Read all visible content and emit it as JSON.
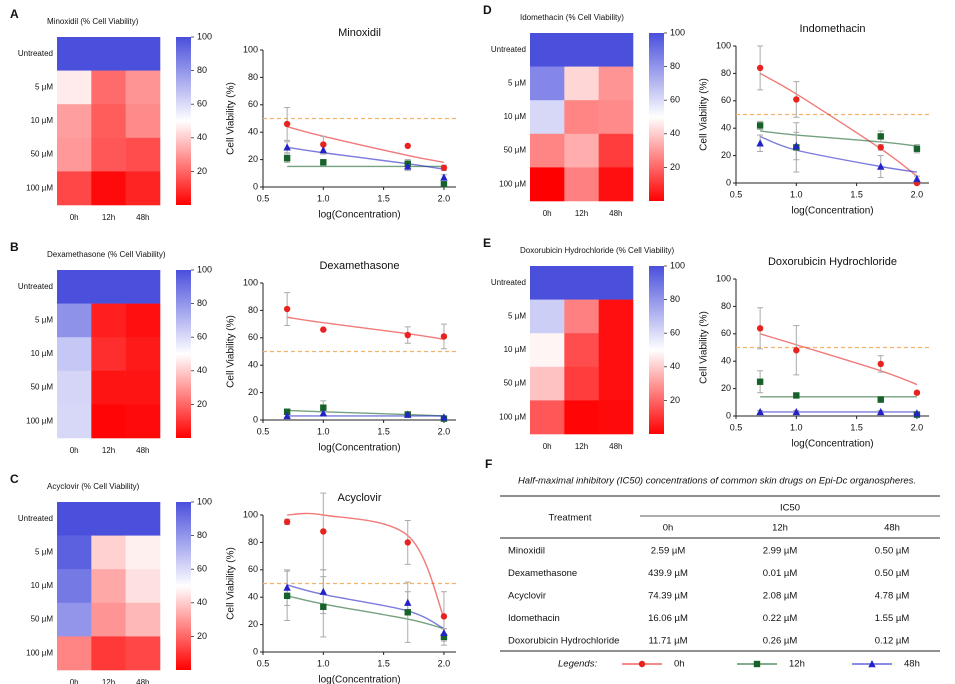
{
  "chart_data": [
    {
      "type": "heatmap",
      "panel": "A",
      "title": "Minoxidil (% Cell Viability)",
      "rows": [
        "Untreated",
        "5 µM",
        "10 µM",
        "50 µM",
        "100 µM"
      ],
      "columns": [
        "0h",
        "12h",
        "48h"
      ],
      "values": [
        [
          100,
          100,
          100
        ],
        [
          46,
          21,
          29
        ],
        [
          31,
          18,
          27
        ],
        [
          30,
          17,
          15
        ],
        [
          14,
          2,
          7
        ]
      ],
      "colorbar": {
        "lim": [
          0,
          100
        ],
        "ticks": [
          20,
          40,
          60,
          80,
          100
        ],
        "colors": [
          "#ff0000",
          "#ffffff",
          "#4a4fdc"
        ]
      }
    },
    {
      "type": "scatter",
      "title": "Minoxidil",
      "xlabel": "log(Concentration)",
      "ylabel": "Cell Viability (%)",
      "x": [
        0.7,
        1.0,
        1.7,
        2.0
      ],
      "series": [
        {
          "values": [
            46,
            31,
            30,
            14
          ],
          "errors": [
            12,
            6,
            0,
            2
          ],
          "fit": [
            44,
            37,
            23,
            18
          ]
        },
        {
          "values": [
            21,
            18,
            17,
            2
          ],
          "errors": [
            3,
            2,
            3,
            1
          ],
          "fit": [
            15,
            15,
            15,
            15
          ]
        },
        {
          "values": [
            29,
            27,
            15,
            7
          ],
          "errors": [
            4,
            3,
            3,
            2
          ],
          "fit": [
            29,
            25,
            17,
            13
          ]
        }
      ],
      "xlim": [
        0.5,
        2.1
      ],
      "ylim": [
        0,
        100
      ],
      "xticks": [
        {
          "value": 0.5,
          "label": "0.5"
        },
        {
          "value": 1,
          "label": "1.0"
        },
        {
          "value": 1.5,
          "label": "1.5"
        },
        {
          "value": 2,
          "label": "2.0"
        }
      ],
      "yticks": [
        0,
        20,
        40,
        60,
        80,
        100
      ],
      "reference_line": 50,
      "reference_color": "#f5b26b"
    },
    {
      "type": "heatmap",
      "panel": "B",
      "title": "Dexamethasone (% Cell Viability)",
      "rows": [
        "Untreated",
        "5 µM",
        "10 µM",
        "50 µM",
        "100 µM"
      ],
      "columns": [
        "0h",
        "12h",
        "48h"
      ],
      "values": [
        [
          100,
          100,
          100
        ],
        [
          81,
          6,
          3
        ],
        [
          66,
          9,
          5
        ],
        [
          62,
          4,
          4
        ],
        [
          61,
          1,
          2
        ]
      ],
      "colorbar": {
        "lim": [
          0,
          100
        ],
        "ticks": [
          20,
          40,
          60,
          80,
          100
        ],
        "colors": [
          "#ff0000",
          "#ffffff",
          "#4a4fdc"
        ]
      }
    },
    {
      "type": "scatter",
      "title": "Dexamethasone",
      "xlabel": "log(Concentration)",
      "ylabel": "Cell Viability (%)",
      "x": [
        0.7,
        1.0,
        1.7,
        2.0
      ],
      "series": [
        {
          "values": [
            81,
            66,
            62,
            61
          ],
          "errors": [
            12,
            0,
            6,
            9
          ],
          "fit": [
            75,
            71,
            63,
            59
          ]
        },
        {
          "values": [
            6,
            9,
            4,
            1
          ],
          "errors": [
            2,
            5,
            2,
            1
          ],
          "fit": [
            7,
            6,
            4,
            3
          ]
        },
        {
          "values": [
            3,
            5,
            4,
            2
          ],
          "errors": [
            1,
            2,
            1,
            1
          ],
          "fit": [
            3,
            3,
            3,
            3
          ]
        }
      ],
      "xlim": [
        0.5,
        2.1
      ],
      "ylim": [
        0,
        100
      ],
      "xticks": [
        {
          "value": 0.5,
          "label": "0.5"
        },
        {
          "value": 1,
          "label": "1.0"
        },
        {
          "value": 1.5,
          "label": "1.5"
        },
        {
          "value": 2,
          "label": "2.0"
        }
      ],
      "yticks": [
        0,
        20,
        40,
        60,
        80,
        100
      ],
      "reference_line": 50,
      "reference_color": "#f5b26b"
    },
    {
      "type": "heatmap",
      "panel": "C",
      "title": "Acyclovir (% Cell Viability)",
      "rows": [
        "Untreated",
        "5 µM",
        "10 µM",
        "50 µM",
        "100 µM"
      ],
      "columns": [
        "0h",
        "12h",
        "48h"
      ],
      "values": [
        [
          100,
          100,
          100
        ],
        [
          95,
          41,
          47
        ],
        [
          88,
          33,
          44
        ],
        [
          80,
          29,
          36
        ],
        [
          26,
          11,
          14
        ]
      ],
      "colorbar": {
        "lim": [
          0,
          100
        ],
        "ticks": [
          20,
          40,
          60,
          80,
          100
        ],
        "colors": [
          "#ff0000",
          "#ffffff",
          "#4a4fdc"
        ]
      }
    },
    {
      "type": "scatter",
      "title": "Acyclovir",
      "xlabel": "log(Concentration)",
      "ylabel": "Cell Viability (%)",
      "x": [
        0.7,
        1.0,
        1.7,
        2.0
      ],
      "series": [
        {
          "values": [
            95,
            88,
            80,
            26
          ],
          "errors": [
            2,
            28,
            16,
            18
          ],
          "fit": [
            100,
            100,
            85,
            25
          ]
        },
        {
          "values": [
            41,
            33,
            29,
            11
          ],
          "errors": [
            18,
            22,
            22,
            6
          ],
          "fit": [
            41,
            35,
            24,
            17
          ]
        },
        {
          "values": [
            47,
            44,
            36,
            14
          ],
          "errors": [
            13,
            16,
            8,
            3
          ],
          "fit": [
            49,
            42,
            30,
            17
          ]
        }
      ],
      "xlim": [
        0.5,
        2.1
      ],
      "ylim": [
        0,
        100
      ],
      "xticks": [
        {
          "value": 0.5,
          "label": "0.5"
        },
        {
          "value": 1,
          "label": "1.0"
        },
        {
          "value": 1.5,
          "label": "1.5"
        },
        {
          "value": 2,
          "label": "2.0"
        }
      ],
      "yticks": [
        0,
        20,
        40,
        60,
        80,
        100
      ],
      "reference_line": 50,
      "reference_color": "#f5b26b"
    },
    {
      "type": "heatmap",
      "panel": "D",
      "title": "Idomethacin (% Cell Viability)",
      "rows": [
        "Untreated",
        "5 µM",
        "10 µM",
        "50 µM",
        "100 µM"
      ],
      "columns": [
        "0h",
        "12h",
        "48h"
      ],
      "values": [
        [
          100,
          100,
          100
        ],
        [
          84,
          42,
          29
        ],
        [
          61,
          26,
          27
        ],
        [
          26,
          34,
          12
        ],
        [
          0,
          25,
          3
        ]
      ],
      "colorbar": {
        "lim": [
          0,
          100
        ],
        "ticks": [
          20,
          40,
          60,
          80,
          100
        ],
        "colors": [
          "#ff0000",
          "#ffffff",
          "#4a4fdc"
        ]
      }
    },
    {
      "type": "scatter",
      "title": "Indomethacin",
      "xlabel": "log(Concentration)",
      "ylabel": "Cell Viability (%)",
      "x": [
        0.7,
        1.0,
        1.7,
        2.0
      ],
      "series": [
        {
          "values": [
            84,
            61,
            26,
            0
          ],
          "errors": [
            16,
            13,
            2,
            1
          ],
          "fit": [
            80,
            65,
            25,
            5
          ]
        },
        {
          "values": [
            42,
            26,
            34,
            25
          ],
          "errors": [
            3,
            18,
            4,
            3
          ],
          "fit": [
            38,
            35,
            30,
            27
          ]
        },
        {
          "values": [
            29,
            27,
            12,
            3
          ],
          "errors": [
            6,
            10,
            8,
            2
          ],
          "fit": [
            34,
            24,
            12,
            8
          ]
        }
      ],
      "xlim": [
        0.5,
        2.1
      ],
      "ylim": [
        0,
        100
      ],
      "xticks": [
        {
          "value": 0.5,
          "label": "0.5"
        },
        {
          "value": 1,
          "label": "1.0"
        },
        {
          "value": 1.5,
          "label": "1.5"
        },
        {
          "value": 2,
          "label": "2.0"
        }
      ],
      "yticks": [
        0,
        20,
        40,
        60,
        80,
        100
      ],
      "reference_line": 50,
      "reference_color": "#f5b26b"
    },
    {
      "type": "heatmap",
      "panel": "E",
      "title": "Doxorubicin Hydrochloride (% Cell Viability)",
      "rows": [
        "Untreated",
        "5 µM",
        "10 µM",
        "50 µM",
        "100 µM"
      ],
      "columns": [
        "0h",
        "12h",
        "48h"
      ],
      "values": [
        [
          100,
          100,
          100
        ],
        [
          64,
          25,
          3
        ],
        [
          48,
          15,
          3
        ],
        [
          38,
          12,
          3
        ],
        [
          17,
          1,
          2
        ]
      ],
      "colorbar": {
        "lim": [
          0,
          100
        ],
        "ticks": [
          20,
          40,
          60,
          80,
          100
        ],
        "colors": [
          "#ff0000",
          "#ffffff",
          "#4a4fdc"
        ]
      }
    },
    {
      "type": "scatter",
      "title": "Doxorubicin Hydrochloride",
      "xlabel": "log(Concentration)",
      "ylabel": "Cell Viability (%)",
      "x": [
        0.7,
        1.0,
        1.7,
        2.0
      ],
      "series": [
        {
          "values": [
            64,
            48,
            38,
            17
          ],
          "errors": [
            15,
            18,
            6,
            1
          ],
          "fit": [
            60,
            52,
            33,
            23
          ]
        },
        {
          "values": [
            25,
            15,
            12,
            1
          ],
          "errors": [
            8,
            1,
            2,
            1
          ],
          "fit": [
            14,
            14,
            14,
            14
          ]
        },
        {
          "values": [
            3,
            3,
            3,
            2
          ],
          "errors": [
            1,
            1,
            1,
            1
          ],
          "fit": [
            3,
            3,
            3,
            3
          ]
        }
      ],
      "xlim": [
        0.5,
        2.1
      ],
      "ylim": [
        0,
        100
      ],
      "xticks": [
        {
          "value": 0.5,
          "label": "0.5"
        },
        {
          "value": 1,
          "label": "1.0"
        },
        {
          "value": 1.5,
          "label": "1.5"
        },
        {
          "value": 2,
          "label": "2.0"
        }
      ],
      "yticks": [
        0,
        20,
        40,
        60,
        80,
        100
      ],
      "reference_line": 50,
      "reference_color": "#f5b26b"
    }
  ],
  "legend": {
    "title": "Legends:",
    "entries": [
      {
        "name": "0h",
        "color": "#e8231f",
        "marker": "circle"
      },
      {
        "name": "12h",
        "color": "#17622a",
        "marker": "square"
      },
      {
        "name": "48h",
        "color": "#2323c8",
        "marker": "triangle"
      }
    ]
  },
  "table": {
    "panel": "F",
    "title": "Half-maximal inhibitory (IC50) concentrations of common skin drugs on Epi-Dc organospheres.",
    "header": "Treatment",
    "group": "IC50",
    "columns": [
      "0h",
      "12h",
      "48h"
    ],
    "rows": [
      [
        "Minoxidil",
        "2.59 µM",
        "2.99 µM",
        "0.50 µM"
      ],
      [
        "Dexamethasone",
        "439.9 µM",
        "0.01 µM",
        "0.50 µM"
      ],
      [
        "Acyclovir",
        "74.39 µM",
        "2.08 µM",
        "4.78 µM"
      ],
      [
        "Idomethacin",
        "16.06 µM",
        "0.22 µM",
        "1.55 µM"
      ],
      [
        "Doxorubicin Hydrochloride",
        "11.71 µM",
        "0.26 µM",
        "0.12 µM"
      ]
    ]
  }
}
